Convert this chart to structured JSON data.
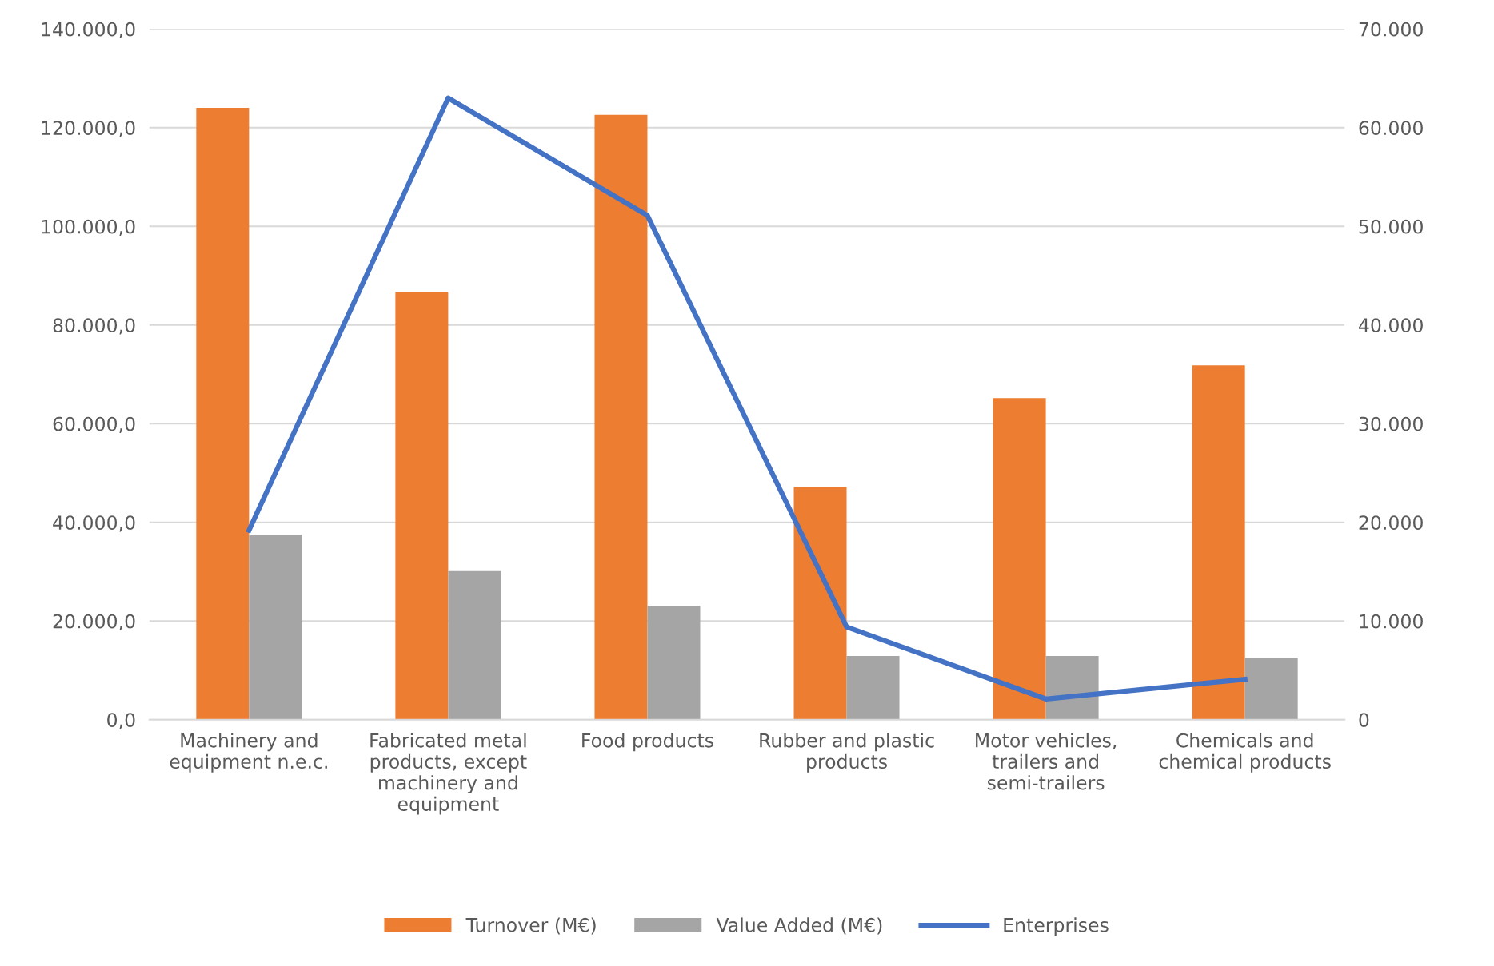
{
  "chart_data": {
    "type": "bar",
    "categories": [
      "Machinery and equipment n.e.c.",
      "Fabricated metal products, except machinery and equipment",
      "Food products",
      "Rubber and plastic products",
      "Motor vehicles, trailers and semi-trailers",
      "Chemicals and chemical products"
    ],
    "series": [
      {
        "name": "Turnover (M€)",
        "color": "#ed7d31",
        "values": [
          124000,
          86600,
          122600,
          47200,
          65200,
          71800
        ]
      },
      {
        "name": "Value Added (M€)",
        "color": "#a5a5a5",
        "values": [
          37500,
          30100,
          23100,
          12900,
          12900,
          12500
        ]
      },
      {
        "name": "Enterprises",
        "color": "#4472c4",
        "type": "line",
        "axis": "y2",
        "values": [
          19200,
          63000,
          51100,
          9400,
          2100,
          4100
        ]
      }
    ],
    "ylim": [
      0,
      140000
    ],
    "yticks": [
      {
        "value": 0,
        "label": "0,0"
      },
      {
        "value": 20000,
        "label": "20.000,0"
      },
      {
        "value": 40000,
        "label": "40.000,0"
      },
      {
        "value": 60000,
        "label": "60.000,0"
      },
      {
        "value": 80000,
        "label": "80.000,0"
      },
      {
        "value": 100000,
        "label": "100.000,0"
      },
      {
        "value": 120000,
        "label": "120.000,0"
      },
      {
        "value": 140000,
        "label": "140.000,0"
      }
    ],
    "y2lim": [
      0,
      70000
    ],
    "y2ticks": [
      0,
      {
        "value": 10000,
        "label": "10.000"
      },
      {
        "value": 20000,
        "label": "20.000"
      },
      {
        "value": 30000,
        "label": "30.000"
      },
      {
        "value": 40000,
        "label": "40.000"
      },
      {
        "value": 50000,
        "label": "50.000"
      },
      {
        "value": 60000,
        "label": "60.000"
      },
      {
        "value": 70000,
        "label": "70.000"
      }
    ],
    "grid": "y",
    "legend": "bottom",
    "marker": "none",
    "line_style": "solid"
  }
}
